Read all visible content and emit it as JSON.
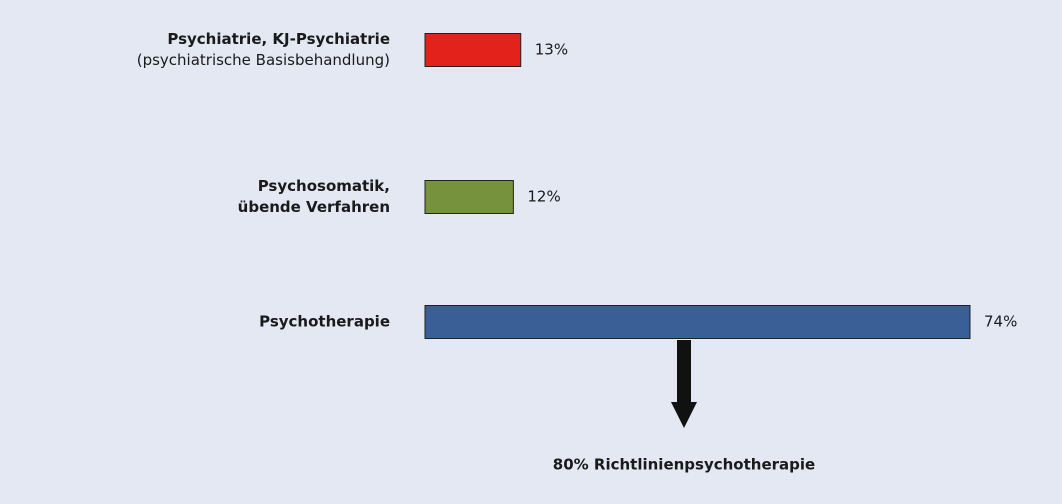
{
  "chart_data": {
    "type": "bar",
    "orientation": "horizontal",
    "categories": [
      [
        "Psychiatrie, KJ-Psychiatrie"
      ],
      [
        "Psychosomatik,",
        "übende Verfahren"
      ],
      [
        "Psychotherapie"
      ]
    ],
    "category_notes": [
      "(psychiatrische Basisbehandlung)",
      null,
      null
    ],
    "values": [
      13,
      12,
      74
    ],
    "value_labels": [
      "13%",
      "12%",
      "74%"
    ],
    "colors": [
      "#e3231b",
      "#76923c",
      "#3a5f96"
    ],
    "annotation": "80% Richtlinienpsychotherapie"
  }
}
